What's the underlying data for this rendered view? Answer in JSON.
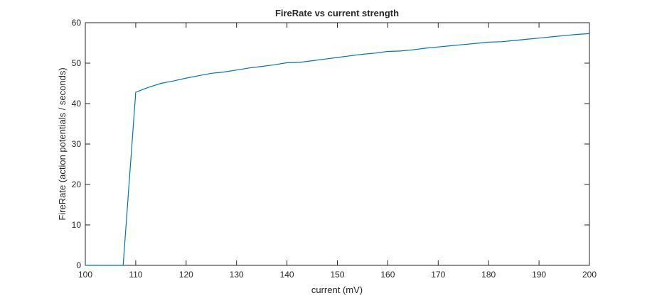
{
  "chart_data": {
    "type": "line",
    "title": "FireRate vs current strength",
    "xlabel": "current (mV)",
    "ylabel": "FireRate (action potentials / seconds)",
    "xlim": [
      100,
      200
    ],
    "ylim": [
      0,
      60
    ],
    "xticks": [
      100,
      110,
      120,
      130,
      140,
      150,
      160,
      170,
      180,
      190,
      200
    ],
    "yticks": [
      0,
      10,
      20,
      30,
      40,
      50,
      60
    ],
    "grid": false,
    "legend": "none",
    "line_color": "#0072BD",
    "axis_color": "#262626",
    "series": [
      {
        "x": [
          100,
          102.5,
          105,
          107.5,
          110,
          112.5,
          115,
          117.5,
          120,
          122.5,
          125,
          127.5,
          130,
          132.5,
          135,
          137.5,
          140,
          142.5,
          145,
          147.5,
          150,
          152.5,
          155,
          157.5,
          160,
          162.5,
          165,
          167.5,
          170,
          172.5,
          175,
          177.5,
          180,
          182.5,
          185,
          187.5,
          190,
          192.5,
          195,
          197.5,
          200
        ],
        "y": [
          0,
          0,
          0,
          0,
          42.8,
          44.0,
          45.0,
          45.6,
          46.3,
          46.9,
          47.5,
          47.8,
          48.3,
          48.8,
          49.2,
          49.6,
          50.1,
          50.2,
          50.6,
          51.0,
          51.4,
          51.8,
          52.2,
          52.5,
          52.9,
          53.0,
          53.3,
          53.7,
          54.0,
          54.3,
          54.6,
          54.9,
          55.2,
          55.3,
          55.6,
          55.9,
          56.2,
          56.5,
          56.8,
          57.1,
          57.3
        ]
      }
    ]
  }
}
